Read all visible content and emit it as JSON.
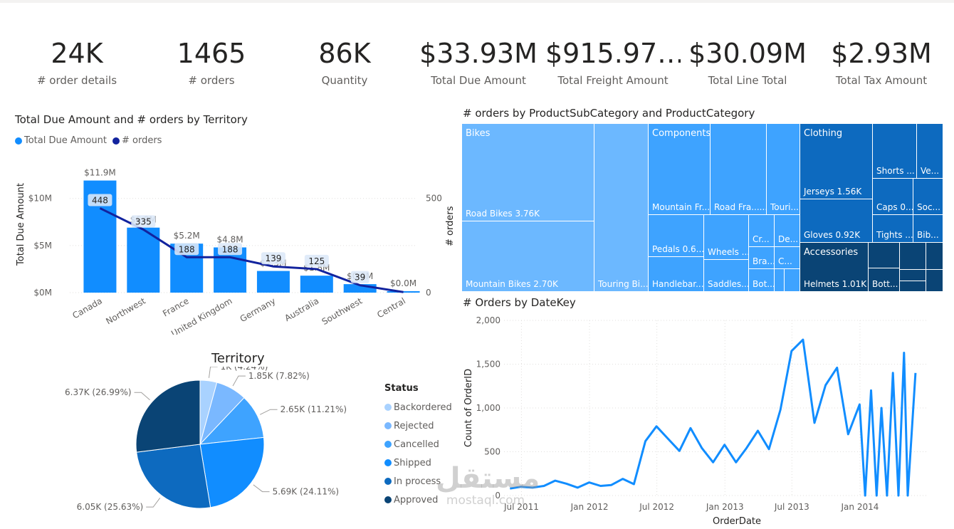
{
  "kpis": [
    {
      "value": "24K",
      "label": "# order details"
    },
    {
      "value": "1465",
      "label": "# orders"
    },
    {
      "value": "86K",
      "label": "Quantity"
    },
    {
      "value": "$33.93M",
      "label": "Total Due Amount"
    },
    {
      "value": "$915.97…",
      "label": "Total Freight Amount"
    },
    {
      "value": "$30.09M",
      "label": "Total Line Total"
    },
    {
      "value": "$2.93M",
      "label": "Total Tax Amount"
    }
  ],
  "chart_data": [
    {
      "type": "bar",
      "title": "Total Due Amount and # orders by Territory",
      "legend": [
        "Total Due Amount",
        "# orders"
      ],
      "ylabel": "Total Due Amount",
      "y2label": "# orders",
      "ylim": [
        0,
        13000000
      ],
      "y2lim": [
        0,
        650
      ],
      "yticks": [
        "$0M",
        "$5M",
        "$10M"
      ],
      "y2ticks": [
        "0",
        "500"
      ],
      "categories": [
        "Canada",
        "Northwest",
        "France",
        "United Kingdom",
        "Germany",
        "Australia",
        "Southwest",
        "Central"
      ],
      "series": [
        {
          "name": "Total Due Amount",
          "type": "bar",
          "values": [
            11900000,
            6900000,
            5200000,
            4800000,
            2300000,
            1800000,
            900000,
            0
          ],
          "labels": [
            "$11.9M",
            "$6.9M",
            "$5.2M",
            "$4.8M",
            "$2.3M",
            "$1.8M",
            "$0.9M",
            "$0.0M"
          ],
          "color": "#118dff"
        },
        {
          "name": "# orders",
          "type": "line",
          "values": [
            448,
            335,
            188,
            188,
            139,
            125,
            39,
            3
          ],
          "labels": [
            "448",
            "335",
            "188",
            "188",
            "139",
            "125",
            "39",
            ""
          ],
          "color": "#12239e"
        }
      ]
    },
    {
      "type": "pie",
      "title": "Territory",
      "legend_title": "Status",
      "slices": [
        {
          "name": "Backordered",
          "value": 1000,
          "label": "1K (4.24%)",
          "color": "#a9d2ff"
        },
        {
          "name": "Rejected",
          "value": 1850,
          "label": "1.85K (7.82%)",
          "color": "#7ab8ff"
        },
        {
          "name": "Cancelled",
          "value": 2650,
          "label": "2.65K (11.21%)",
          "color": "#3ea3ff"
        },
        {
          "name": "Shipped",
          "value": 5690,
          "label": "5.69K (24.11%)",
          "color": "#118dff"
        },
        {
          "name": "In process",
          "value": 6050,
          "label": "6.05K (25.63%)",
          "color": "#0d6abf"
        },
        {
          "name": "Approved",
          "value": 6370,
          "label": "6.37K (26.99%)",
          "color": "#0a4475"
        }
      ]
    },
    {
      "type": "treemap",
      "title": "# orders by ProductSubCategory and ProductCategory",
      "ylabel": "# orders",
      "groups": [
        {
          "name": "Bikes",
          "items": [
            {
              "label": "Road Bikes 3.76K"
            },
            {
              "label": "Mountain Bikes 2.70K"
            },
            {
              "label": "Touring Bi..."
            }
          ]
        },
        {
          "name": "Components",
          "items": [
            {
              "label": "Mountain Fr..."
            },
            {
              "label": "Road Fra......"
            },
            {
              "label": "Touri..."
            },
            {
              "label": "Pedals 0.6..."
            },
            {
              "label": "Handlebar..."
            },
            {
              "label": "Wheels ..."
            },
            {
              "label": "Saddles..."
            },
            {
              "label": "Cr..."
            },
            {
              "label": "De..."
            },
            {
              "label": "Bra..."
            },
            {
              "label": "C..."
            },
            {
              "label": "Bot..."
            }
          ]
        },
        {
          "name": "Clothing",
          "items": [
            {
              "label": "Jerseys 1.56K"
            },
            {
              "label": "Gloves 0.92K"
            },
            {
              "label": "Shorts ..."
            },
            {
              "label": "Ve..."
            },
            {
              "label": "Caps 0..."
            },
            {
              "label": "Soc..."
            },
            {
              "label": "Tights ..."
            },
            {
              "label": "Bib..."
            }
          ]
        },
        {
          "name": "Accessories",
          "items": [
            {
              "label": "Helmets 1.01K"
            },
            {
              "label": "Bott..."
            }
          ]
        }
      ]
    },
    {
      "type": "line",
      "title": "# Orders by DateKey",
      "xlabel": "OrderDate",
      "ylabel": "Count of OrderID",
      "ylim": [
        0,
        2000
      ],
      "yticks": [
        "0",
        "500",
        "1,000",
        "1,500",
        "2,000"
      ],
      "xticks": [
        "Jul 2011",
        "Jan 2012",
        "Jul 2012",
        "Jan 2013",
        "Jul 2013",
        "Jan 2014"
      ],
      "xlim": [
        "2011-05-15",
        "2014-07-01"
      ],
      "series": [
        {
          "name": "Count of OrderID",
          "color": "#118dff",
          "points": [
            [
              "2011-05-31",
              80
            ],
            [
              "2011-06-30",
              100
            ],
            [
              "2011-07-31",
              90
            ],
            [
              "2011-08-31",
              110
            ],
            [
              "2011-09-30",
              170
            ],
            [
              "2011-10-31",
              135
            ],
            [
              "2011-11-30",
              90
            ],
            [
              "2011-12-31",
              150
            ],
            [
              "2012-01-31",
              110
            ],
            [
              "2012-02-29",
              120
            ],
            [
              "2012-03-31",
              190
            ],
            [
              "2012-04-30",
              130
            ],
            [
              "2012-05-31",
              620
            ],
            [
              "2012-06-30",
              790
            ],
            [
              "2012-07-31",
              650
            ],
            [
              "2012-08-31",
              510
            ],
            [
              "2012-09-30",
              770
            ],
            [
              "2012-10-31",
              540
            ],
            [
              "2012-11-30",
              380
            ],
            [
              "2012-12-31",
              580
            ],
            [
              "2013-01-31",
              380
            ],
            [
              "2013-02-28",
              540
            ],
            [
              "2013-03-31",
              740
            ],
            [
              "2013-04-30",
              530
            ],
            [
              "2013-05-31",
              980
            ],
            [
              "2013-06-30",
              1650
            ],
            [
              "2013-07-31",
              1780
            ],
            [
              "2013-08-31",
              830
            ],
            [
              "2013-09-30",
              1260
            ],
            [
              "2013-10-31",
              1460
            ],
            [
              "2013-11-30",
              700
            ],
            [
              "2013-12-31",
              1040
            ],
            [
              "2014-01-15",
              0
            ],
            [
              "2014-01-31",
              1200
            ],
            [
              "2014-02-15",
              0
            ],
            [
              "2014-02-28",
              1000
            ],
            [
              "2014-03-15",
              0
            ],
            [
              "2014-03-31",
              1400
            ],
            [
              "2014-04-15",
              0
            ],
            [
              "2014-04-30",
              1630
            ],
            [
              "2014-05-10",
              0
            ],
            [
              "2014-05-31",
              1400
            ]
          ]
        }
      ]
    }
  ],
  "watermark": {
    "arabic": "مستقل",
    "latin": "mostaql.com"
  }
}
